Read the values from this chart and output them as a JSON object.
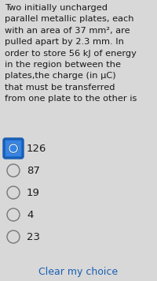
{
  "background_color": "#d8d8d8",
  "question_text": "Two initially uncharged\nparallel metallic plates, each\nwith an area of 37 mm², are\npulled apart by 2.3 mm. In\norder to store 56 kJ of energy\nin the region between the\nplates,the charge (in μC)\nthat must be transferred\nfrom one plate to the other is",
  "options": [
    "126",
    "87",
    "19",
    "4",
    "23"
  ],
  "selected_index": 0,
  "footer_text": "Clear my choice",
  "footer_color": "#1a5fb4",
  "question_font_size": 8.2,
  "option_font_size": 9.5,
  "footer_font_size": 9.0,
  "text_color": "#1a1a1a",
  "selected_radio_fill": "#3584e4",
  "selected_radio_border": "#1a5fb4",
  "radio_border_color": "#777777",
  "radio_fill_color": "#d8d8d8",
  "fig_width": 2.0,
  "fig_height": 3.56,
  "dpi": 100
}
